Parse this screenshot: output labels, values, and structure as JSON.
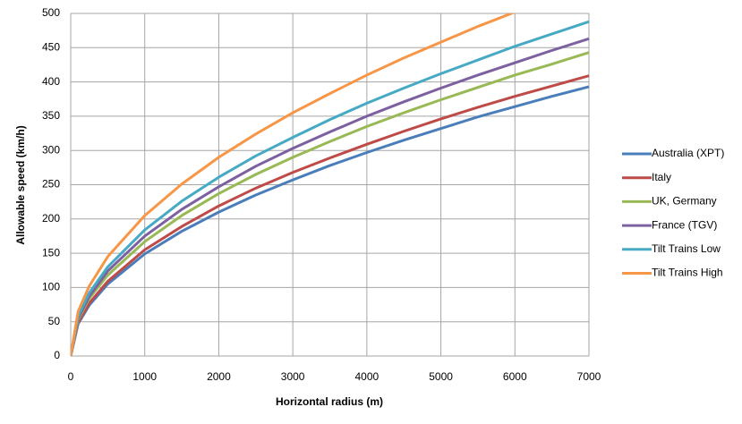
{
  "chart_data": {
    "type": "line",
    "xlabel": "Horizontal radius (m)",
    "ylabel": "Allowable speed (km/h)",
    "x": [
      0,
      100,
      250,
      500,
      1000,
      1500,
      2000,
      2500,
      3000,
      3500,
      4000,
      4500,
      5000,
      5500,
      6000,
      6500,
      7000
    ],
    "series": [
      {
        "name": "Australia (XPT)",
        "color": "#4a7ebb",
        "values": [
          0,
          47,
          74,
          105,
          149,
          182,
          210,
          235,
          257,
          278,
          297,
          315,
          332,
          349,
          364,
          379,
          393
        ]
      },
      {
        "name": "Italy",
        "color": "#be4b48",
        "values": [
          0,
          49,
          77,
          109,
          155,
          189,
          219,
          245,
          268,
          289,
          309,
          328,
          346,
          363,
          379,
          394,
          409
        ]
      },
      {
        "name": "UK, Germany",
        "color": "#98b954",
        "values": [
          0,
          53,
          84,
          118,
          167,
          205,
          237,
          265,
          290,
          313,
          335,
          355,
          374,
          392,
          410,
          426,
          443
        ]
      },
      {
        "name": "France (TGV)",
        "color": "#7d60a0",
        "values": [
          0,
          55,
          87,
          124,
          175,
          214,
          247,
          277,
          303,
          327,
          350,
          371,
          391,
          410,
          428,
          446,
          463
        ]
      },
      {
        "name": "Tilt Trains Low",
        "color": "#46aac5",
        "values": [
          0,
          58,
          92,
          130,
          184,
          226,
          261,
          292,
          319,
          345,
          369,
          391,
          412,
          432,
          452,
          470,
          488
        ]
      },
      {
        "name": "Tilt Trains High",
        "color": "#f79646",
        "values": [
          0,
          65,
          102,
          145,
          205,
          251,
          290,
          324,
          355,
          383,
          410,
          435,
          458,
          481,
          502,
          null,
          null
        ]
      }
    ],
    "xlim": [
      0,
      7000
    ],
    "xticks": [
      0,
      1000,
      2000,
      3000,
      4000,
      5000,
      6000,
      7000
    ],
    "ylim": [
      0,
      500
    ],
    "yticks": [
      0,
      50,
      100,
      150,
      200,
      250,
      300,
      350,
      400,
      450,
      500
    ],
    "grid": true,
    "legend": "right"
  }
}
